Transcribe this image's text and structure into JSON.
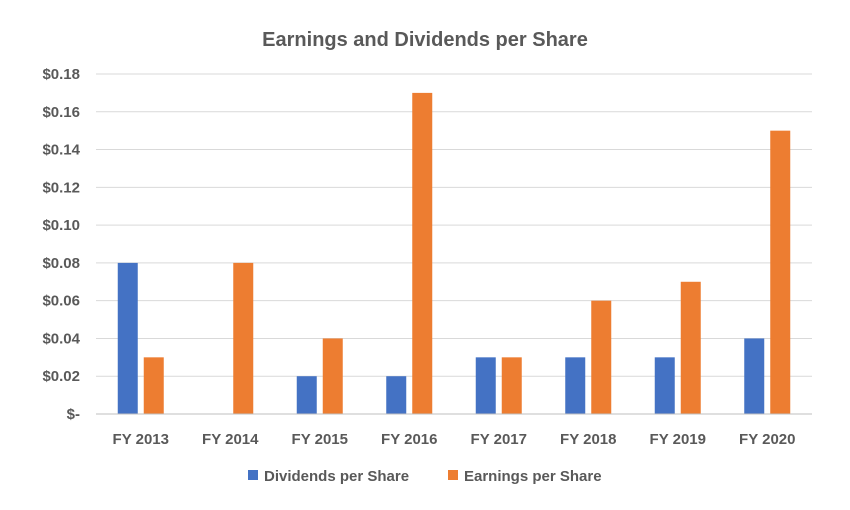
{
  "chart_data": {
    "type": "bar",
    "title": "Earnings and Dividends per Share",
    "categories": [
      "FY 2013",
      "FY 2014",
      "FY 2015",
      "FY 2016",
      "FY 2017",
      "FY 2018",
      "FY 2019",
      "FY 2020"
    ],
    "series": [
      {
        "name": "Dividends per Share",
        "color": "#4472c4",
        "values": [
          0.08,
          0,
          0.02,
          0.02,
          0.03,
          0.03,
          0.03,
          0.04
        ]
      },
      {
        "name": "Earnings per Share",
        "color": "#ed7d31",
        "values": [
          0.03,
          0.08,
          0.04,
          0.17,
          0.03,
          0.06,
          0.07,
          0.15
        ]
      }
    ],
    "y_ticks": [
      0,
      0.02,
      0.04,
      0.06,
      0.08,
      0.1,
      0.12,
      0.14,
      0.16,
      0.18
    ],
    "y_tick_labels": [
      "$-",
      "$0.02",
      "$0.04",
      "$0.06",
      "$0.08",
      "$0.10",
      "$0.12",
      "$0.14",
      "$0.16",
      "$0.18"
    ],
    "ylim": [
      0,
      0.18
    ],
    "grid": true,
    "legend_position": "bottom"
  }
}
